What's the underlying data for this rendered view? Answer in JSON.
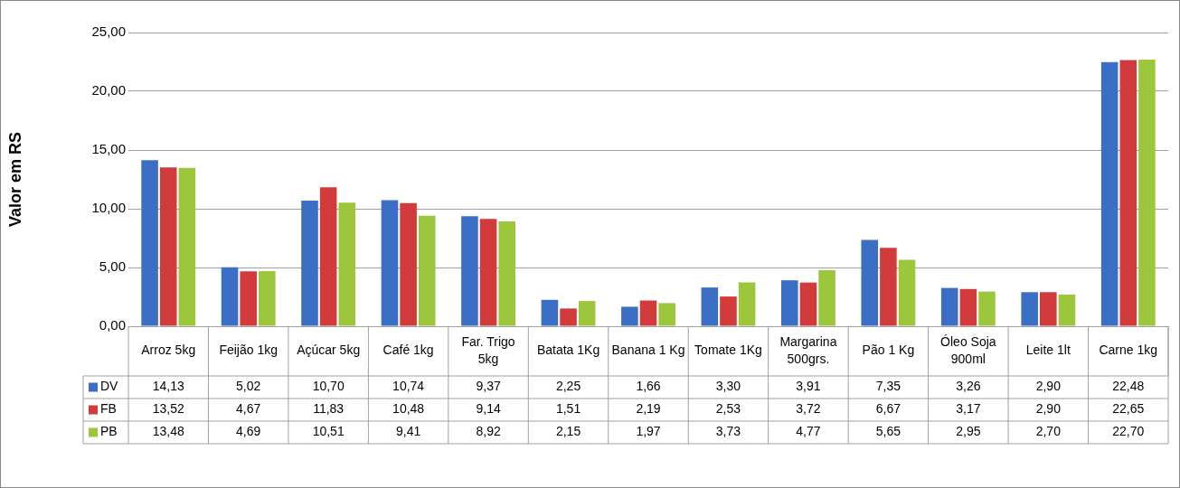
{
  "chart_data": {
    "type": "bar",
    "ylabel": "Valor em RS",
    "categories": [
      "Arroz 5kg",
      "Feijão 1kg",
      "Açúcar 5kg",
      "Café 1kg",
      "Far. Trigo 5kg",
      "Batata 1Kg",
      "Banana 1 Kg",
      "Tomate 1Kg",
      "Margarina 500grs.",
      "Pão 1 Kg",
      "Óleo Soja 900ml",
      "Leite 1lt",
      "Carne 1kg"
    ],
    "series": [
      {
        "name": "DV",
        "color": "#3b6fc6",
        "values": [
          14.13,
          5.02,
          10.7,
          10.74,
          9.37,
          2.25,
          1.66,
          3.3,
          3.91,
          7.35,
          3.26,
          2.9,
          22.48
        ],
        "value_labels": [
          "14,13",
          "5,02",
          "10,70",
          "10,74",
          "9,37",
          "2,25",
          "1,66",
          "3,30",
          "3,91",
          "7,35",
          "3,26",
          "2,90",
          "22,48"
        ]
      },
      {
        "name": "FB",
        "color": "#d23b3b",
        "values": [
          13.52,
          4.67,
          11.83,
          10.48,
          9.14,
          1.51,
          2.19,
          2.53,
          3.72,
          6.67,
          3.17,
          2.9,
          22.65
        ],
        "value_labels": [
          "13,52",
          "4,67",
          "11,83",
          "10,48",
          "9,14",
          "1,51",
          "2,19",
          "2,53",
          "3,72",
          "6,67",
          "3,17",
          "2,90",
          "22,65"
        ]
      },
      {
        "name": "PB",
        "color": "#9cc63b",
        "values": [
          13.48,
          4.69,
          10.51,
          9.41,
          8.92,
          2.15,
          1.97,
          3.73,
          4.77,
          5.65,
          2.95,
          2.7,
          22.7
        ],
        "value_labels": [
          "13,48",
          "4,69",
          "10,51",
          "9,41",
          "8,92",
          "2,15",
          "1,97",
          "3,73",
          "4,77",
          "5,65",
          "2,95",
          "2,70",
          "22,70"
        ]
      }
    ],
    "ylim": [
      0,
      25
    ],
    "yticks": [
      {
        "value": 0,
        "label": "0,00"
      },
      {
        "value": 5,
        "label": "5,00"
      },
      {
        "value": 10,
        "label": "10,00"
      },
      {
        "value": 15,
        "label": "15,00"
      },
      {
        "value": 20,
        "label": "20,00"
      },
      {
        "value": 25,
        "label": "25,00"
      }
    ],
    "grid": "y",
    "legend": "bottom"
  }
}
